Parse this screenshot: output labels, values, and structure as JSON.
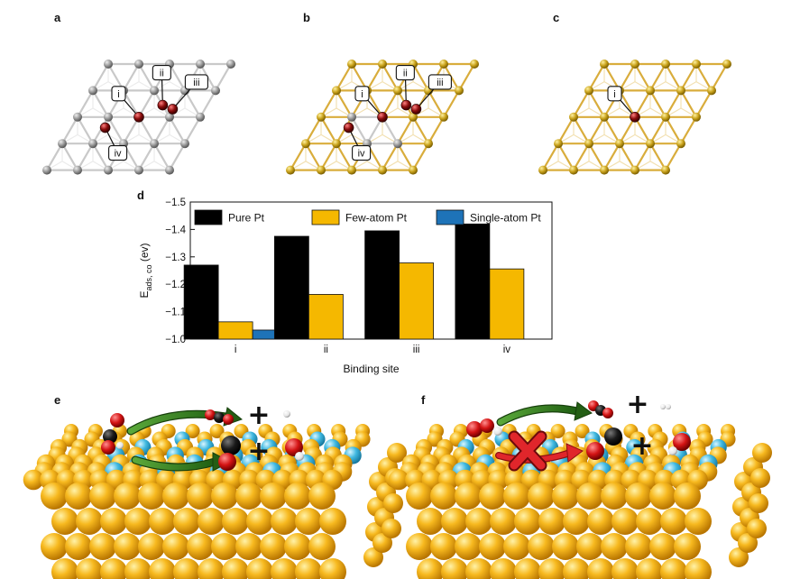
{
  "figure": {
    "panels": {
      "a": {
        "letter": "a",
        "lattice": "pure-pt",
        "sites": [
          "i",
          "ii",
          "iii",
          "iv"
        ]
      },
      "b": {
        "letter": "b",
        "lattice": "few-atom-pt",
        "sites": [
          "i",
          "ii",
          "iii",
          "iv"
        ]
      },
      "c": {
        "letter": "c",
        "lattice": "single-atom-pt",
        "sites": [
          "i"
        ]
      },
      "d": {
        "letter": "d"
      },
      "e": {
        "letter": "e"
      },
      "f": {
        "letter": "f"
      }
    },
    "colors": {
      "pure_pt": "#000000",
      "few_atom_pt": "#f5b800",
      "single_atom_pt": "#1e73b8",
      "gold_atom": "#f2b21c",
      "pt_atom": "#3fb8e0",
      "oxygen": "#d41414",
      "carbon": "#111111",
      "hydrogen": "#ffffff",
      "arrow_green": "#2e7d1f",
      "cross_red": "#e0262b"
    },
    "symbols": {
      "plus": "+"
    }
  },
  "chart_data": {
    "type": "bar",
    "title": "",
    "xlabel": "Binding site",
    "ylabel_main": "E",
    "ylabel_sub": "ads, co",
    "ylabel_unit": " (ev)",
    "categories": [
      "i",
      "ii",
      "iii",
      "iv"
    ],
    "series": [
      {
        "name": "Pure Pt",
        "color": "#000000",
        "values": [
          -1.27,
          -1.375,
          -1.395,
          -1.42
        ]
      },
      {
        "name": "Few-atom Pt",
        "color": "#f5b800",
        "values": [
          -1.063,
          -1.163,
          -1.278,
          -1.256
        ]
      },
      {
        "name": "Single-atom Pt",
        "color": "#1e73b8",
        "values": [
          -1.033,
          null,
          null,
          null
        ]
      }
    ],
    "ylim": [
      -1.0,
      -1.5
    ],
    "yticks": [
      -1.0,
      -1.1,
      -1.2,
      -1.3,
      -1.4,
      -1.5
    ],
    "ytick_labels": [
      "−1.0",
      "−1.1",
      "−1.2",
      "−1.3",
      "−1.4",
      "−1.5"
    ],
    "legend_position": "top",
    "grid": false
  }
}
